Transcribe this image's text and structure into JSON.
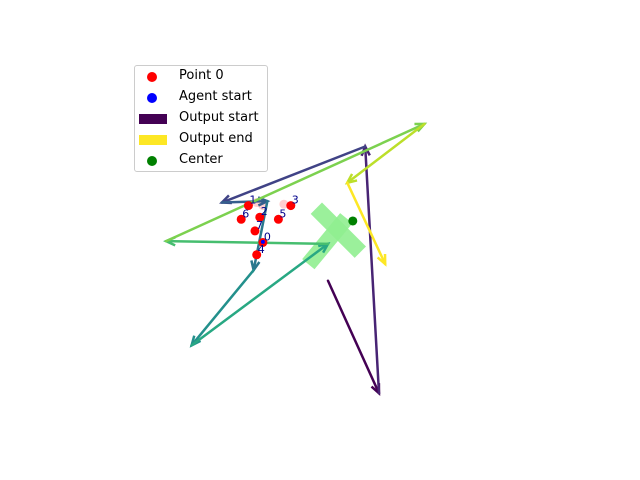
{
  "chart_data": {
    "type": "line",
    "title": "",
    "xlabel": "",
    "ylabel": "",
    "axes_visible": false,
    "xlim": [
      -0.72,
      0.72
    ],
    "ylim": [
      -0.54,
      0.54
    ],
    "colormap": "viridis",
    "legend": {
      "placement": "upper-left",
      "entries": [
        {
          "label": "Point 0",
          "kind": "marker",
          "color": "#ff0000"
        },
        {
          "label": "Agent start",
          "kind": "marker",
          "color": "#0000ff"
        },
        {
          "label": "Output start",
          "kind": "patch",
          "color": "#440154"
        },
        {
          "label": "Output end",
          "kind": "patch",
          "color": "#fde725"
        },
        {
          "label": "Center",
          "kind": "marker",
          "color": "#008000"
        }
      ]
    },
    "center": {
      "x": 0.072,
      "y": 0.063
    },
    "highlight_cross": {
      "color": "#90ee90",
      "center": {
        "x": 0.03,
        "y": 0.036
      }
    },
    "points": [
      {
        "label": "0",
        "x": -0.189,
        "y": 0.0
      },
      {
        "label": "1",
        "x": -0.231,
        "y": 0.108
      },
      {
        "label": "2",
        "x": -0.198,
        "y": 0.074
      },
      {
        "label": "3",
        "x": -0.108,
        "y": 0.108
      },
      {
        "label": "4",
        "x": -0.207,
        "y": -0.036
      },
      {
        "label": "5",
        "x": -0.144,
        "y": 0.068
      },
      {
        "label": "6",
        "x": -0.252,
        "y": 0.068
      },
      {
        "label": "7",
        "x": -0.212,
        "y": 0.034
      }
    ],
    "faded_points": [
      {
        "x": -0.207,
        "y": 0.117
      },
      {
        "x": -0.128,
        "y": 0.112
      },
      {
        "x": -0.189,
        "y": 0.108
      }
    ],
    "agent_start": {
      "x": -0.189,
      "y": 0.002
    },
    "path": [
      {
        "x": -0.0,
        "y": -0.112
      },
      {
        "x": 0.148,
        "y": -0.441
      },
      {
        "x": 0.108,
        "y": 0.281
      },
      {
        "x": -0.308,
        "y": 0.117
      },
      {
        "x": -0.176,
        "y": 0.121
      },
      {
        "x": -0.216,
        "y": -0.081
      },
      {
        "x": -0.396,
        "y": -0.301
      },
      {
        "x": -0.0,
        "y": -0.004
      },
      {
        "x": -0.47,
        "y": 0.004
      },
      {
        "x": 0.28,
        "y": 0.347
      },
      {
        "x": 0.056,
        "y": 0.175
      },
      {
        "x": 0.166,
        "y": -0.063
      }
    ]
  }
}
